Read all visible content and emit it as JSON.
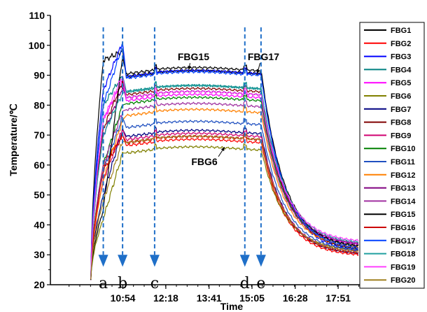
{
  "chart_data": {
    "type": "line",
    "xlabel": "Time",
    "ylabel": "Temperature/℃",
    "ylim": [
      20,
      110
    ],
    "yticks": [
      20,
      30,
      40,
      50,
      60,
      70,
      80,
      90,
      100,
      110
    ],
    "xticks": [
      "10:54",
      "12:18",
      "13:41",
      "15:05",
      "16:28",
      "17:51"
    ],
    "events": [
      {
        "label": "a",
        "x": 10.3
      },
      {
        "label": "b",
        "x": 10.92
      },
      {
        "label": "c",
        "x": 11.95
      },
      {
        "label": "d",
        "x": 14.85
      },
      {
        "label": "e",
        "x": 15.37
      }
    ],
    "annotations": [
      {
        "text": "FBG15",
        "x": 13.2,
        "y": 95,
        "target_x": 13.05,
        "target_y": 91.8
      },
      {
        "text": "FBG17",
        "x": 15.45,
        "y": 95,
        "target_x": 15.25,
        "target_y": 90.5
      },
      {
        "text": "FBG6",
        "x": 13.55,
        "y": 60,
        "target_x": 14.2,
        "target_y": 66
      }
    ],
    "series": [
      {
        "name": "FBG1",
        "color": "#000000",
        "start": 95,
        "peak": 98,
        "plateau": 91,
        "end": 31
      },
      {
        "name": "FBG2",
        "color": "#ff0000",
        "start": 60,
        "peak": 70,
        "plateau": 68,
        "end": 29.5
      },
      {
        "name": "FBG3",
        "color": "#0000ff",
        "start": 85,
        "peak": 101,
        "plateau": 91,
        "end": 30.5
      },
      {
        "name": "FBG4",
        "color": "#008080",
        "start": 80,
        "peak": 90,
        "plateau": 86,
        "end": 32
      },
      {
        "name": "FBG5",
        "color": "#ff00ff",
        "start": 75,
        "peak": 88,
        "plateau": 83,
        "end": 33
      },
      {
        "name": "FBG6",
        "color": "#808000",
        "start": 42,
        "peak": 64,
        "plateau": 65.5,
        "end": 31
      },
      {
        "name": "FBG7",
        "color": "#000080",
        "start": 50,
        "peak": 72,
        "plateau": 71,
        "end": 30
      },
      {
        "name": "FBG8",
        "color": "#800000",
        "start": 72,
        "peak": 88,
        "plateau": 85,
        "end": 31.5
      },
      {
        "name": "FBG9",
        "color": "#d00070",
        "start": 55,
        "peak": 72,
        "plateau": 70,
        "end": 30.5
      },
      {
        "name": "FBG10",
        "color": "#008000",
        "start": 60,
        "peak": 80,
        "plateau": 82,
        "end": 32.5
      },
      {
        "name": "FBG11",
        "color": "#2050c0",
        "start": 58,
        "peak": 76,
        "plateau": 74,
        "end": 31
      },
      {
        "name": "FBG12",
        "color": "#ff8000",
        "start": 55,
        "peak": 75,
        "plateau": 78,
        "end": 32
      },
      {
        "name": "FBG13",
        "color": "#800080",
        "start": 70,
        "peak": 86,
        "plateau": 84,
        "end": 33
      },
      {
        "name": "FBG14",
        "color": "#a030a0",
        "start": 60,
        "peak": 78,
        "plateau": 80,
        "end": 32.5
      },
      {
        "name": "FBG15",
        "color": "#000000",
        "start": 45,
        "peak": 96,
        "plateau": 92,
        "end": 32
      },
      {
        "name": "FBG16",
        "color": "#cc0000",
        "start": 58,
        "peak": 70,
        "plateau": 69,
        "end": 30
      },
      {
        "name": "FBG17",
        "color": "#0040ff",
        "start": 80,
        "peak": 100,
        "plateau": 90.5,
        "end": 31.5
      },
      {
        "name": "FBG18",
        "color": "#20a0a0",
        "start": 70,
        "peak": 84,
        "plateau": 86,
        "end": 33.5
      },
      {
        "name": "FBG19",
        "color": "#ff40ff",
        "start": 75,
        "peak": 90,
        "plateau": 84,
        "end": 34
      },
      {
        "name": "FBG20",
        "color": "#a08020",
        "start": 48,
        "peak": 68,
        "plateau": 69,
        "end": 30.5
      }
    ]
  }
}
